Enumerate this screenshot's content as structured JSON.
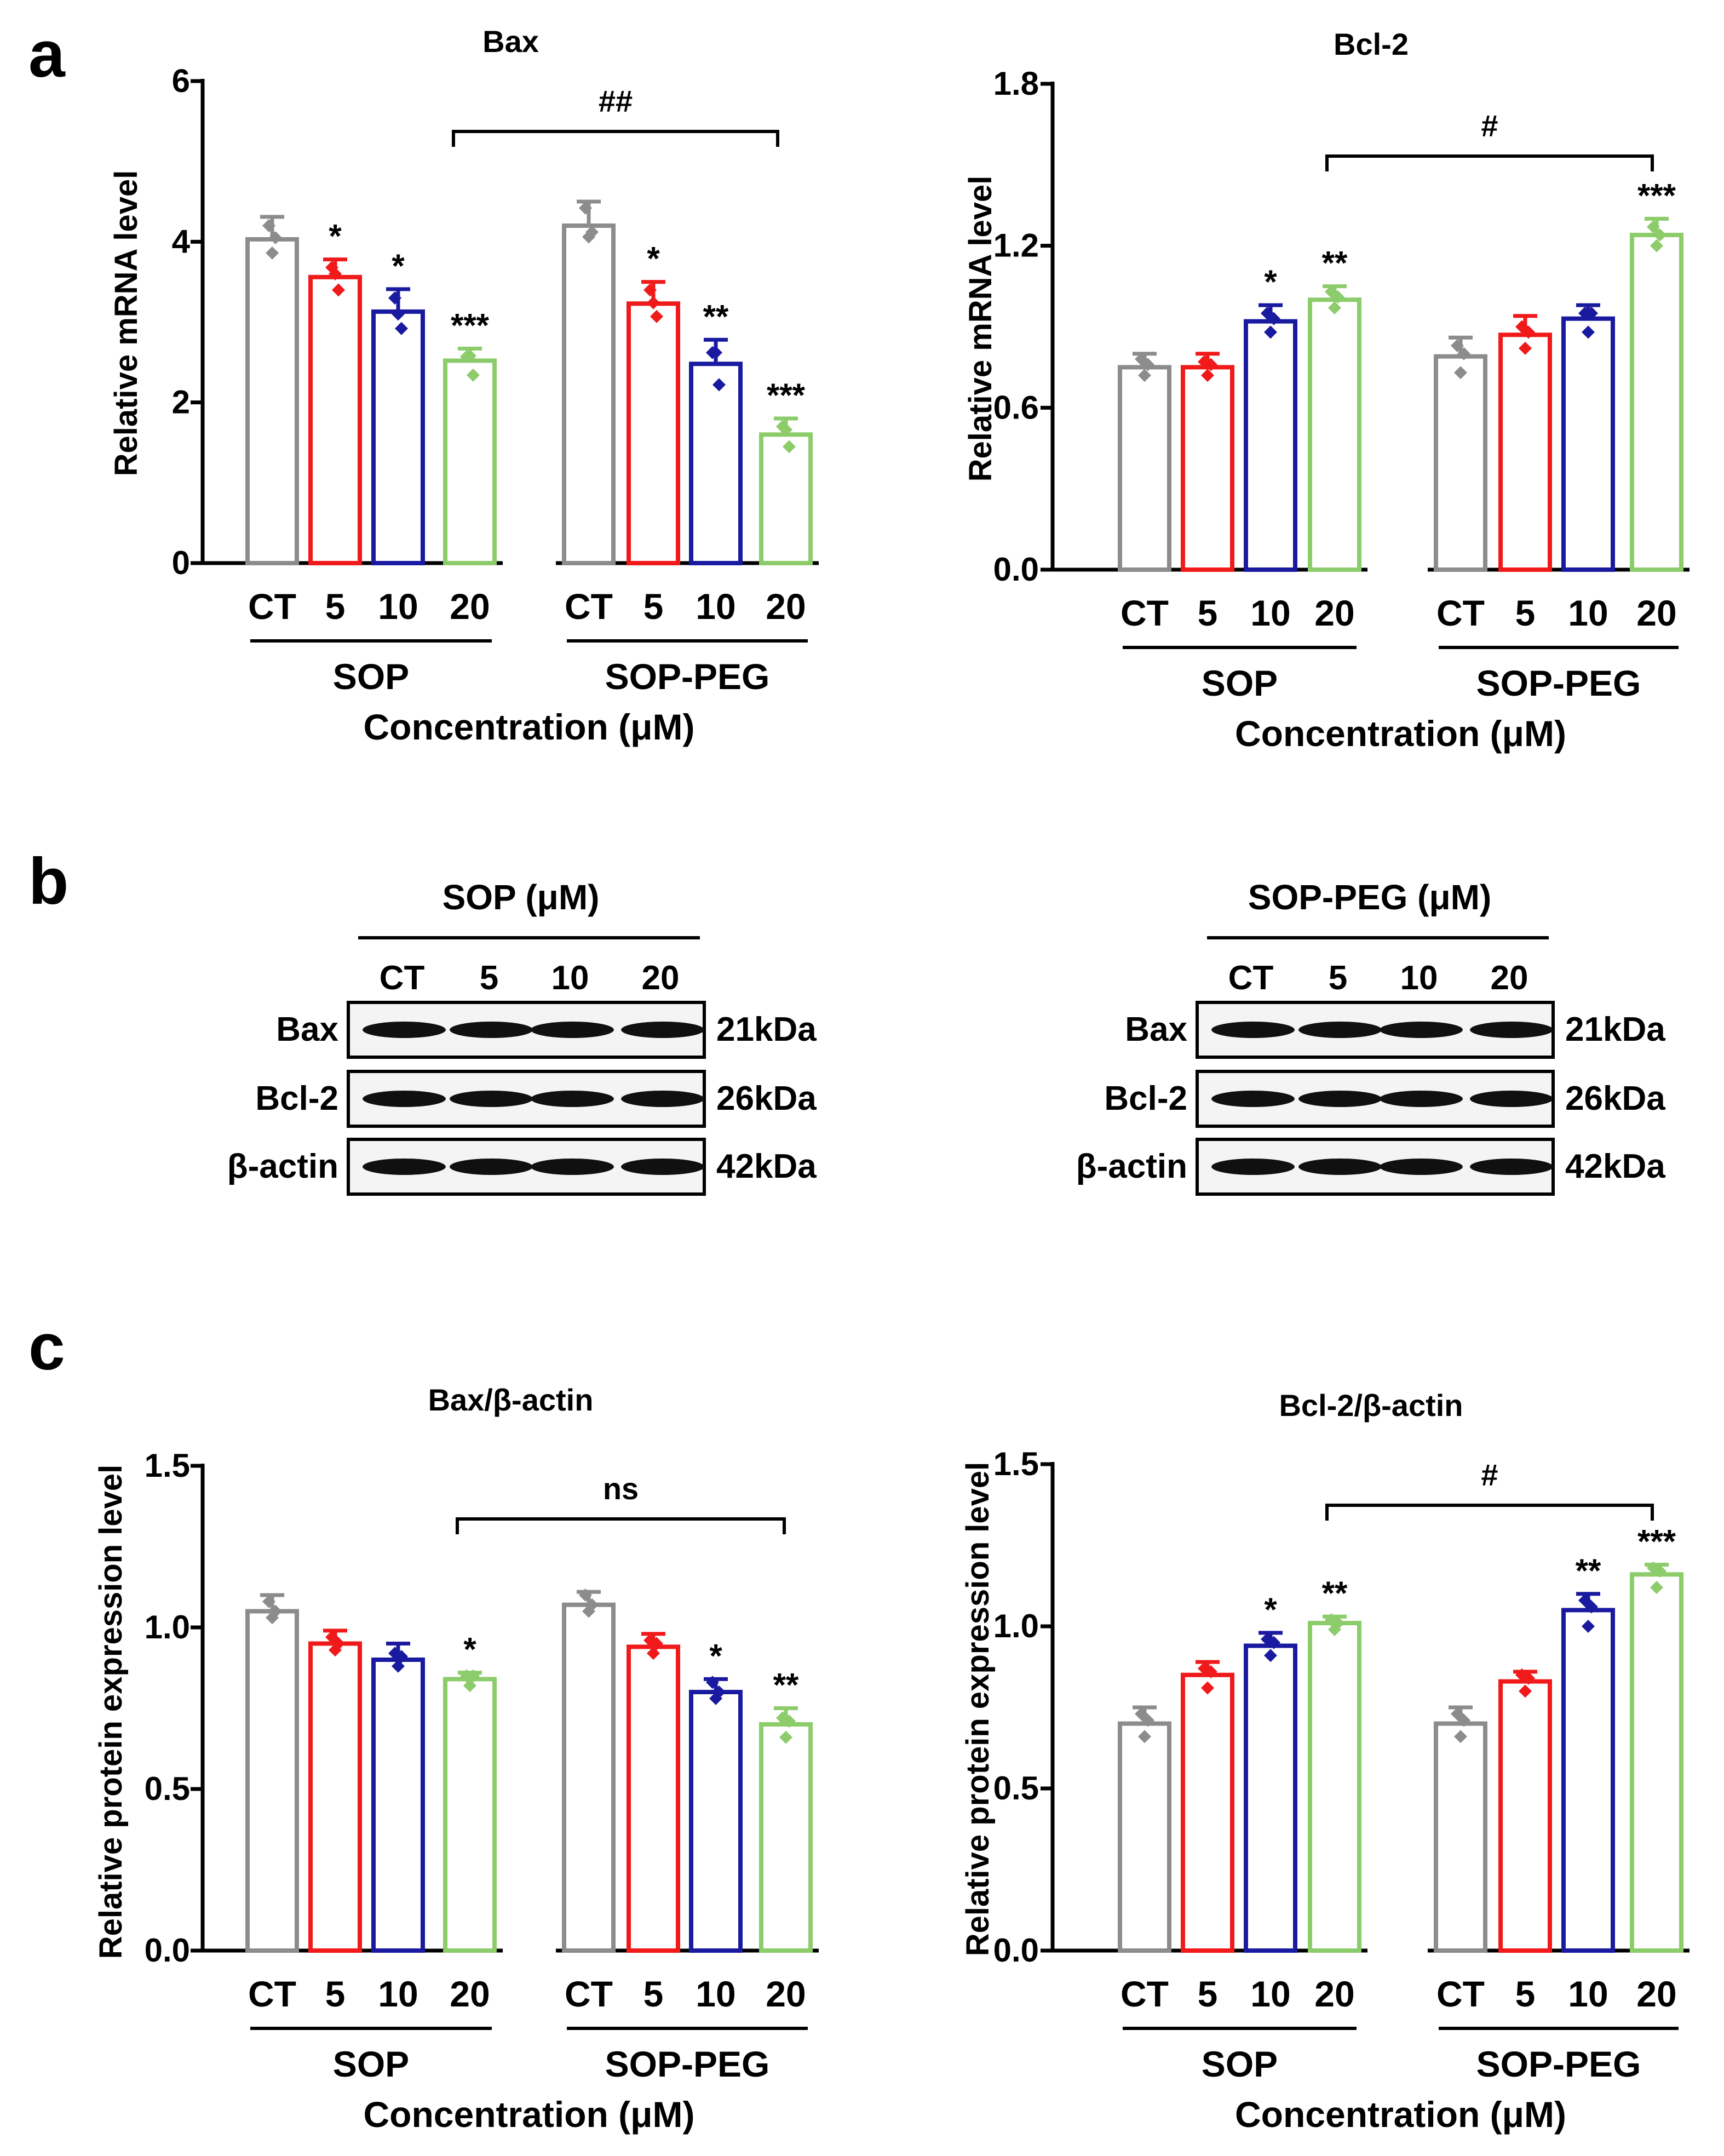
{
  "panel_labels": {
    "a": "a",
    "b": "b",
    "c": "c"
  },
  "colors": {
    "CT": "#8c8c8c",
    "5": "#f01a1a",
    "10": "#1a1aa0",
    "20": "#8ccc6a"
  },
  "chart_data": [
    {
      "type": "bar",
      "title": "Bax",
      "ylabel": "Relative mRNA level",
      "ylim": [
        0,
        6
      ],
      "yticks": [
        "0",
        "2",
        "4",
        "6"
      ],
      "categories": [
        "CT",
        "5",
        "10",
        "20"
      ],
      "groups": [
        "SOP",
        "SOP-PEG"
      ],
      "xlabel": "Concentration (μM)",
      "values": [
        [
          4.03,
          3.56,
          3.13,
          2.52
        ],
        [
          4.2,
          3.23,
          2.48,
          1.6
        ]
      ],
      "errors": [
        [
          0.28,
          0.22,
          0.28,
          0.15
        ],
        [
          0.3,
          0.27,
          0.3,
          0.2
        ]
      ],
      "points": [
        [
          [
            4.2,
            3.86,
            4.05
          ],
          [
            3.68,
            3.6,
            3.4
          ],
          [
            3.3,
            3.1,
            2.92
          ],
          [
            2.57,
            2.58,
            2.34
          ]
        ],
        [
          [
            4.42,
            4.06,
            4.12
          ],
          [
            3.4,
            3.24,
            3.07
          ],
          [
            2.62,
            2.62,
            2.22
          ],
          [
            1.7,
            1.66,
            1.45
          ]
        ]
      ],
      "significance": [
        [
          "",
          "*",
          "*",
          "***"
        ],
        [
          "",
          "*",
          "**",
          "***"
        ]
      ],
      "comparison": "##"
    },
    {
      "type": "bar",
      "title": "Bcl-2",
      "ylabel": "Relative mRNA level",
      "ylim": [
        0,
        1.8
      ],
      "yticks": [
        "0.0",
        "0.6",
        "1.2",
        "1.8"
      ],
      "categories": [
        "CT",
        "5",
        "10",
        "20"
      ],
      "groups": [
        "SOP",
        "SOP-PEG"
      ],
      "xlabel": "Concentration (μM)",
      "values": [
        [
          0.75,
          0.75,
          0.92,
          1.0
        ],
        [
          0.79,
          0.87,
          0.93,
          1.24
        ]
      ],
      "errors": [
        [
          0.05,
          0.05,
          0.06,
          0.05
        ],
        [
          0.07,
          0.07,
          0.05,
          0.06
        ]
      ],
      "points": [
        [
          [
            0.78,
            0.72,
            0.76
          ],
          [
            0.77,
            0.72,
            0.76
          ],
          [
            0.95,
            0.88,
            0.93
          ],
          [
            1.03,
            0.97,
            1.01
          ]
        ],
        [
          [
            0.83,
            0.73,
            0.8
          ],
          [
            0.9,
            0.82,
            0.88
          ],
          [
            0.95,
            0.88,
            0.95
          ],
          [
            1.27,
            1.2,
            1.24
          ]
        ]
      ],
      "significance": [
        [
          "",
          "",
          "*",
          "**"
        ],
        [
          "",
          "",
          "",
          "***"
        ]
      ],
      "comparison": "#"
    },
    {
      "type": "bar",
      "title": "Bax/β-actin",
      "ylabel": "Relative protein expression level",
      "ylim": [
        0,
        1.5
      ],
      "yticks": [
        "0.0",
        "0.5",
        "1.0",
        "1.5"
      ],
      "categories": [
        "CT",
        "5",
        "10",
        "20"
      ],
      "groups": [
        "SOP",
        "SOP-PEG"
      ],
      "xlabel": "Concentration (μM)",
      "values": [
        [
          1.05,
          0.95,
          0.9,
          0.84
        ],
        [
          1.07,
          0.94,
          0.8,
          0.7
        ]
      ],
      "errors": [
        [
          0.05,
          0.04,
          0.05,
          0.02
        ],
        [
          0.04,
          0.04,
          0.04,
          0.05
        ]
      ],
      "points": [
        [
          [
            1.08,
            1.03,
            1.05
          ],
          [
            0.97,
            0.93,
            0.95
          ],
          [
            0.92,
            0.88,
            0.91
          ],
          [
            0.85,
            0.82,
            0.85
          ]
        ],
        [
          [
            1.1,
            1.05,
            1.07
          ],
          [
            0.96,
            0.92,
            0.95
          ],
          [
            0.83,
            0.78,
            0.8
          ],
          [
            0.72,
            0.66,
            0.71
          ]
        ]
      ],
      "significance": [
        [
          "",
          "",
          "",
          "*"
        ],
        [
          "",
          "",
          "*",
          "**"
        ]
      ],
      "comparison": "ns"
    },
    {
      "type": "bar",
      "title": "Bcl-2/β-actin",
      "ylabel": "Relative protein expression level",
      "ylim": [
        0,
        1.5
      ],
      "yticks": [
        "0.0",
        "0.5",
        "1.0",
        "1.5"
      ],
      "categories": [
        "CT",
        "5",
        "10",
        "20"
      ],
      "groups": [
        "SOP",
        "SOP-PEG"
      ],
      "xlabel": "Concentration (μM)",
      "values": [
        [
          0.7,
          0.85,
          0.94,
          1.01
        ],
        [
          0.7,
          0.83,
          1.05,
          1.16
        ]
      ],
      "errors": [
        [
          0.05,
          0.04,
          0.04,
          0.02
        ],
        [
          0.05,
          0.03,
          0.05,
          0.03
        ]
      ],
      "points": [
        [
          [
            0.73,
            0.66,
            0.71
          ],
          [
            0.87,
            0.81,
            0.86
          ],
          [
            0.96,
            0.91,
            0.95
          ],
          [
            1.02,
            0.99,
            1.01
          ]
        ],
        [
          [
            0.73,
            0.66,
            0.71
          ],
          [
            0.85,
            0.8,
            0.84
          ],
          [
            1.08,
            1.0,
            1.06
          ],
          [
            1.18,
            1.12,
            1.17
          ]
        ]
      ],
      "significance": [
        [
          "",
          "",
          "*",
          "**"
        ],
        [
          "",
          "",
          "**",
          "***"
        ]
      ],
      "comparison": "#"
    }
  ],
  "western": [
    {
      "header": "SOP (μM)",
      "lanes": [
        "CT",
        "5",
        "10",
        "20"
      ],
      "rows": [
        {
          "label": "Bax",
          "size": "21kDa"
        },
        {
          "label": "Bcl-2",
          "size": "26kDa"
        },
        {
          "label": "β-actin",
          "size": "42kDa"
        }
      ]
    },
    {
      "header": "SOP-PEG (μM)",
      "lanes": [
        "CT",
        "5",
        "10",
        "20"
      ],
      "rows": [
        {
          "label": "Bax",
          "size": "21kDa"
        },
        {
          "label": "Bcl-2",
          "size": "26kDa"
        },
        {
          "label": "β-actin",
          "size": "42kDa"
        }
      ]
    }
  ]
}
